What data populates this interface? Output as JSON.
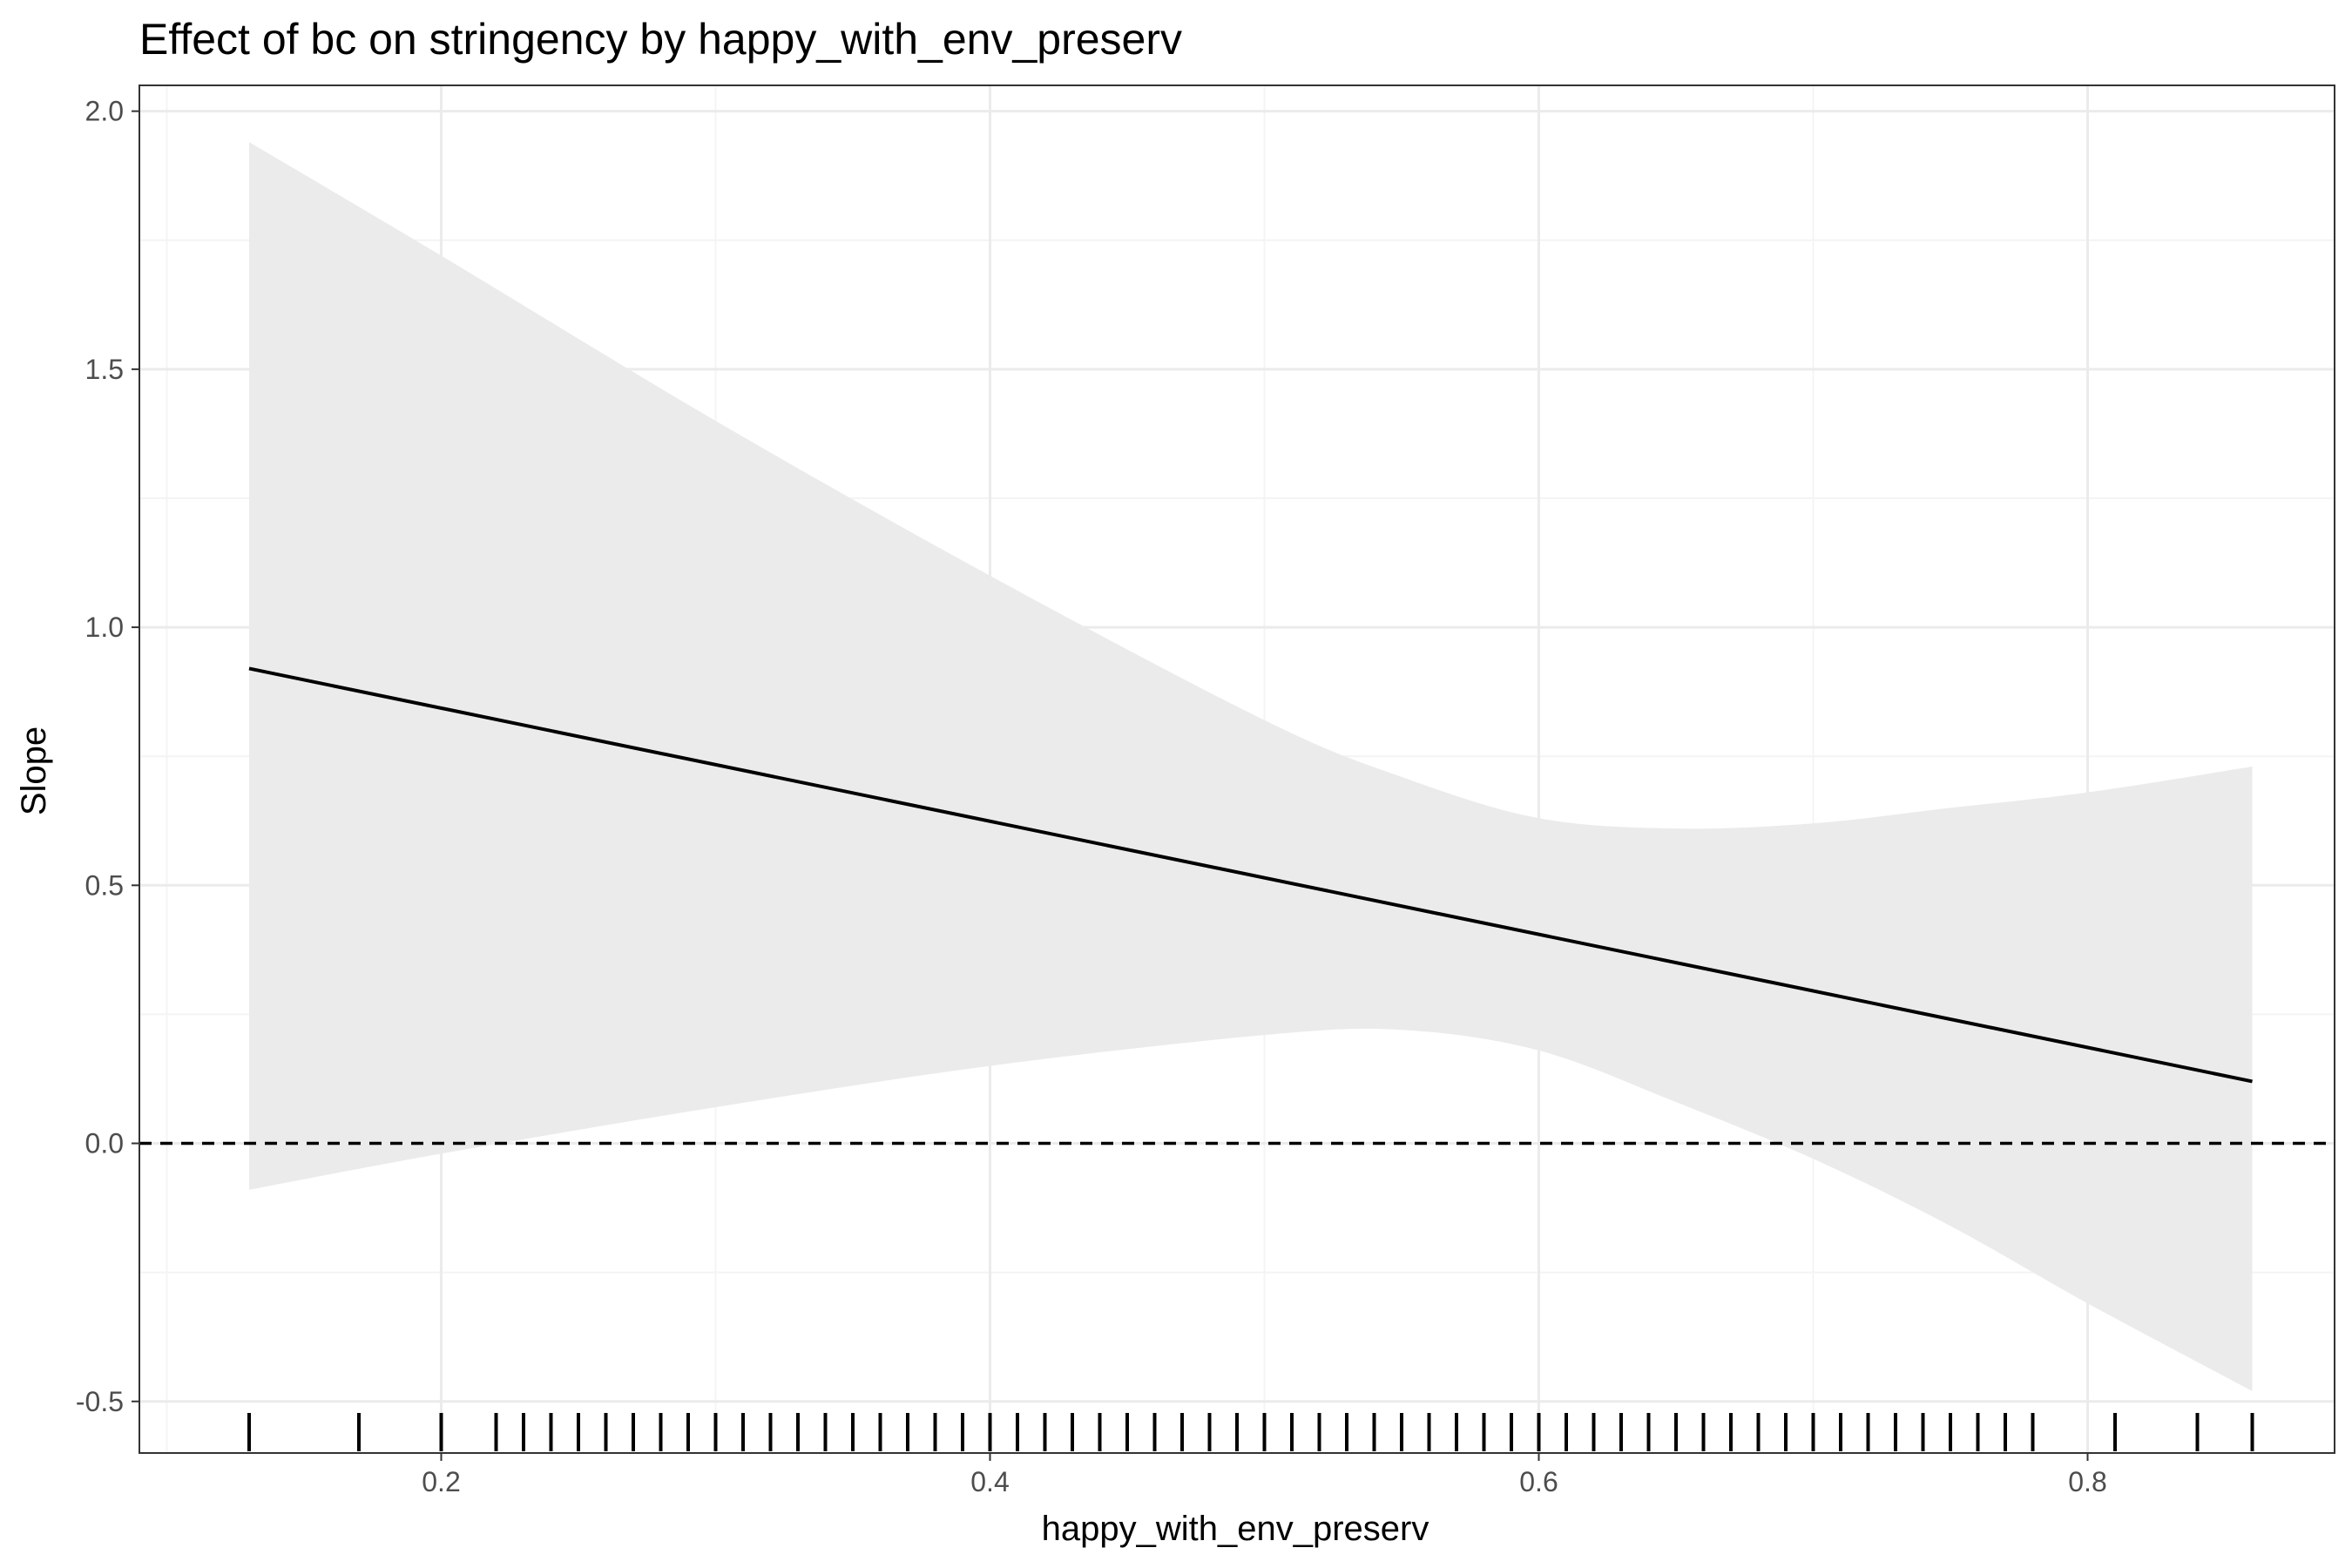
{
  "chart_data": {
    "type": "line",
    "title": "Effect of bc on stringency by happy_with_env_preserv",
    "xlabel": "happy_with_env_preserv",
    "ylabel": "Slope",
    "xlim": [
      0.09,
      0.89
    ],
    "ylim": [
      -0.6,
      2.05
    ],
    "x_ticks": [
      0.2,
      0.4,
      0.6,
      0.8
    ],
    "x_tick_labels": [
      "0.2",
      "0.4",
      "0.6",
      "0.8"
    ],
    "y_ticks": [
      -0.5,
      0.0,
      0.5,
      1.0,
      1.5,
      2.0
    ],
    "y_tick_labels": [
      "-0.5",
      "0.0",
      "0.5",
      "1.0",
      "1.5",
      "2.0"
    ],
    "x_minor_ticks": [
      0.1,
      0.3,
      0.5,
      0.7
    ],
    "y_minor_ticks": [
      -0.25,
      0.25,
      0.75,
      1.25,
      1.75
    ],
    "grid": true,
    "reference_line": {
      "y": 0,
      "style": "dashed"
    },
    "line": {
      "x": [
        0.13,
        0.86
      ],
      "y": [
        0.92,
        0.12
      ]
    },
    "ribbon": {
      "x": [
        0.13,
        0.2,
        0.3,
        0.4,
        0.5,
        0.55,
        0.6,
        0.65,
        0.7,
        0.75,
        0.8,
        0.86
      ],
      "lower": [
        -0.09,
        -0.02,
        0.07,
        0.15,
        0.21,
        0.22,
        0.18,
        0.08,
        -0.03,
        -0.16,
        -0.31,
        -0.48
      ],
      "upper": [
        1.94,
        1.72,
        1.4,
        1.1,
        0.82,
        0.71,
        0.63,
        0.61,
        0.62,
        0.65,
        0.68,
        0.73
      ]
    },
    "rug_x": [
      0.13,
      0.17,
      0.2,
      0.22,
      0.23,
      0.24,
      0.25,
      0.26,
      0.27,
      0.28,
      0.29,
      0.3,
      0.31,
      0.32,
      0.33,
      0.34,
      0.35,
      0.36,
      0.37,
      0.38,
      0.39,
      0.4,
      0.41,
      0.42,
      0.43,
      0.44,
      0.45,
      0.46,
      0.47,
      0.48,
      0.49,
      0.5,
      0.51,
      0.52,
      0.53,
      0.54,
      0.55,
      0.56,
      0.57,
      0.58,
      0.59,
      0.6,
      0.61,
      0.62,
      0.63,
      0.64,
      0.65,
      0.66,
      0.67,
      0.68,
      0.69,
      0.7,
      0.71,
      0.72,
      0.73,
      0.74,
      0.75,
      0.76,
      0.77,
      0.78,
      0.81,
      0.84,
      0.86
    ],
    "colors": {
      "line": "#000000",
      "ribbon": "#ebebeb",
      "grid_major": "#ebebeb",
      "grid_minor": "#f4f4f4",
      "panel_border": "#333333",
      "tick_label": "#4d4d4d"
    }
  }
}
